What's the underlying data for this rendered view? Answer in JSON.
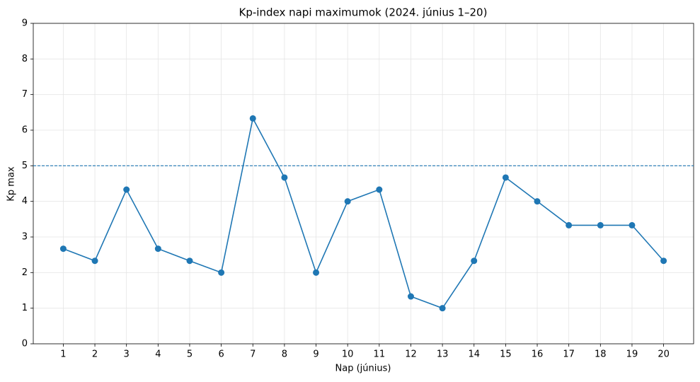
{
  "chart_data": {
    "type": "line",
    "title": "Kp-index napi maximumok (2024. június 1–20)",
    "x_label": "Nap (június)",
    "y_label": "Kp max",
    "x": [
      1,
      2,
      3,
      4,
      5,
      6,
      7,
      8,
      9,
      10,
      11,
      12,
      13,
      14,
      15,
      16,
      17,
      18,
      19,
      20
    ],
    "series": [
      {
        "color": "#1f77b4",
        "values": [
          2.67,
          2.33,
          4.33,
          2.67,
          2.33,
          2.0,
          6.33,
          4.67,
          2.0,
          4.0,
          4.33,
          1.33,
          1.0,
          2.33,
          4.67,
          4.0,
          3.33,
          3.33,
          3.33,
          2.33
        ]
      }
    ],
    "threshold": 5,
    "xlim": [
      0.05,
      20.95
    ],
    "ylim": [
      0,
      9
    ],
    "xticks": [
      1,
      2,
      3,
      4,
      5,
      6,
      7,
      8,
      9,
      10,
      11,
      12,
      13,
      14,
      15,
      16,
      17,
      18,
      19,
      20
    ],
    "yticks": [
      0,
      1,
      2,
      3,
      4,
      5,
      6,
      7,
      8,
      9
    ],
    "grid": true
  }
}
